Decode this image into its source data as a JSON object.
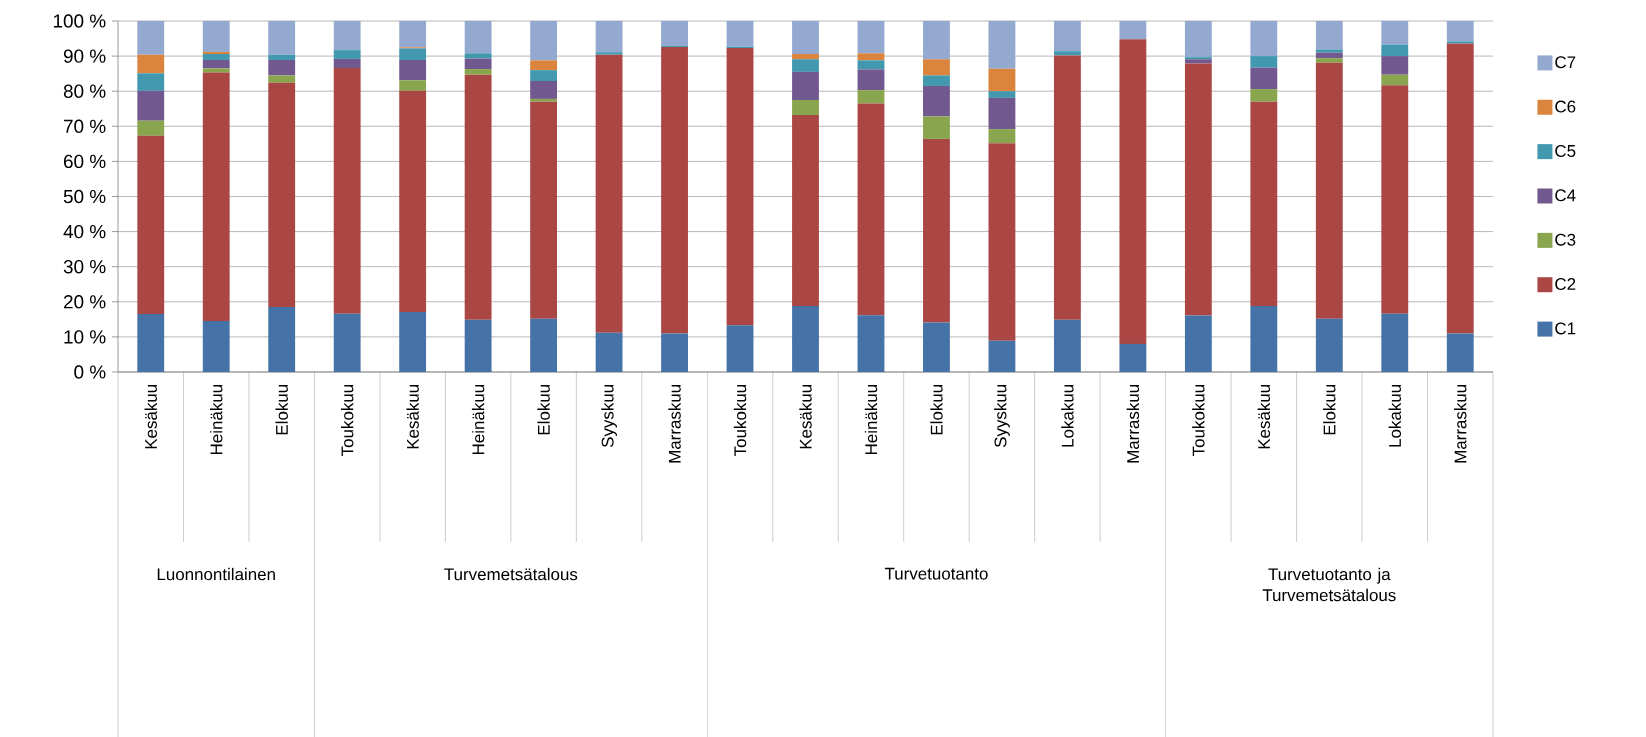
{
  "chart_data": {
    "type": "bar",
    "stacked": true,
    "categories": [
      "Kesäkuu",
      "Heinäkuu",
      "Elokuu",
      "Toukokuu",
      "Kesäkuu",
      "Heinäkuu",
      "Elokuu",
      "Syyskuu",
      "Marraskuu",
      "Toukokuu",
      "Kesäkuu",
      "Heinäkuu",
      "Elokuu",
      "Syyskuu",
      "Lokakuu",
      "Marraskuu",
      "Toukokuu",
      "Kesäkuu",
      "Elokuu",
      "Lokakuu",
      "Marraskuu"
    ],
    "annotations": [
      "Luonnontilainen",
      "Turvemetsätalous",
      "Turvetuotanto",
      "Turvetuotanto ja Turvemetsätalous"
    ],
    "series": [
      {
        "name": "C1",
        "color": "#4572a7",
        "values": [
          16.5,
          14.5,
          18.5,
          16.6,
          17.1,
          14.9,
          15.2,
          11.2,
          11.0,
          13.3,
          18.8,
          16.2,
          14.1,
          8.9,
          14.9,
          8.0,
          16.1,
          18.8,
          15.2,
          16.6,
          11.0
        ]
      },
      {
        "name": "C2",
        "color": "#aa4643",
        "values": [
          50.8,
          70.8,
          63.9,
          70.0,
          63.0,
          69.8,
          61.8,
          79.2,
          81.6,
          79.0,
          54.4,
          60.3,
          52.3,
          56.3,
          75.3,
          86.8,
          71.8,
          58.2,
          72.9,
          65.1,
          82.6
        ]
      },
      {
        "name": "C3",
        "color": "#89a54e",
        "values": [
          4.3,
          1.2,
          2.1,
          0,
          3.0,
          1.6,
          0.8,
          0,
          0,
          0,
          4.3,
          3.8,
          6.4,
          4.0,
          0,
          0,
          0,
          3.6,
          1.3,
          3.0,
          0
        ]
      },
      {
        "name": "C4",
        "color": "#71588f",
        "values": [
          8.5,
          2.4,
          4.4,
          2.6,
          5.8,
          3.0,
          5.1,
          0,
          0,
          0,
          8.0,
          5.9,
          8.7,
          8.9,
          0,
          0,
          1.2,
          6.1,
          1.6,
          5.3,
          0
        ]
      },
      {
        "name": "C5",
        "color": "#4198af",
        "values": [
          5.0,
          1.7,
          1.5,
          2.5,
          3.3,
          1.5,
          3.1,
          0.7,
          0.3,
          0.4,
          3.6,
          2.6,
          3.0,
          1.9,
          1.2,
          0,
          0.6,
          3.3,
          0.9,
          3.3,
          0.6
        ]
      },
      {
        "name": "C6",
        "color": "#db843d",
        "values": [
          5.3,
          0.6,
          0,
          0,
          0.3,
          0,
          2.8,
          0,
          0,
          0,
          1.5,
          2.0,
          4.6,
          6.4,
          0,
          0,
          0,
          0,
          0,
          0,
          0
        ]
      },
      {
        "name": "C7",
        "color": "#93a9cf",
        "values": [
          9.6,
          8.8,
          9.6,
          8.3,
          7.5,
          9.2,
          11.2,
          8.9,
          7.1,
          7.3,
          9.4,
          9.2,
          10.9,
          13.6,
          8.6,
          5.2,
          10.3,
          10.0,
          8.1,
          6.7,
          5.8
        ]
      }
    ],
    "ylim": [
      0,
      100
    ],
    "yticks": [
      {
        "value": 0,
        "label": "0 %"
      },
      {
        "value": 10,
        "label": "10 %"
      },
      {
        "value": 20,
        "label": "20 %"
      },
      {
        "value": 30,
        "label": "30 %"
      },
      {
        "value": 40,
        "label": "40 %"
      },
      {
        "value": 50,
        "label": "50 %"
      },
      {
        "value": 60,
        "label": "60 %"
      },
      {
        "value": 70,
        "label": "70 %"
      },
      {
        "value": 80,
        "label": "80 %"
      },
      {
        "value": 90,
        "label": "90 %"
      },
      {
        "value": 100,
        "label": "100 %"
      }
    ],
    "grid": "y",
    "legend": "right"
  }
}
